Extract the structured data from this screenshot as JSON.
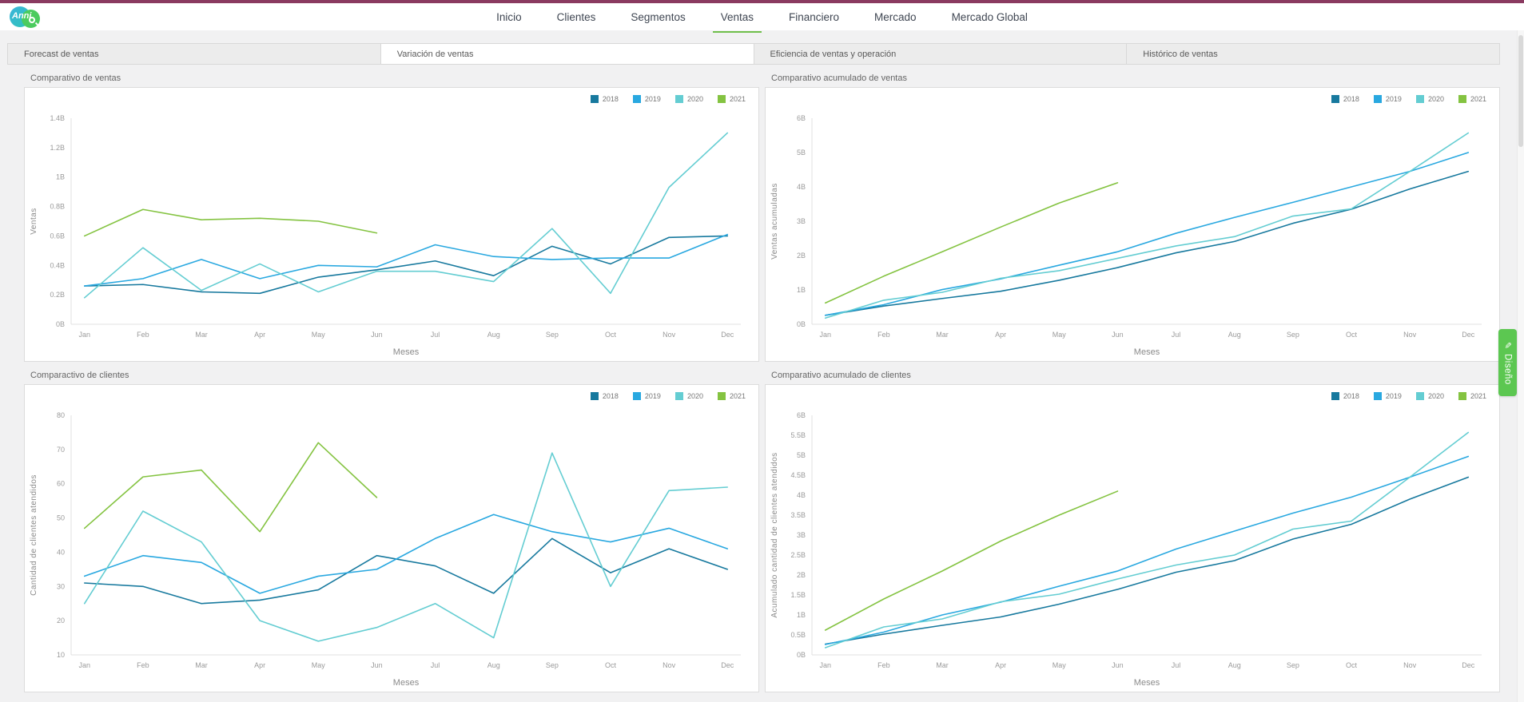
{
  "header": {
    "logo_text": "Anni",
    "topbar_color": "#8a3a60",
    "active_underline_color": "#6fbf4b",
    "nav_items": [
      {
        "label": "Inicio",
        "active": false
      },
      {
        "label": "Clientes",
        "active": false
      },
      {
        "label": "Segmentos",
        "active": false
      },
      {
        "label": "Ventas",
        "active": true
      },
      {
        "label": "Financiero",
        "active": false
      },
      {
        "label": "Mercado",
        "active": false
      },
      {
        "label": "Mercado Global",
        "active": false
      }
    ]
  },
  "subtabs": [
    {
      "label": "Forecast de ventas",
      "active": false
    },
    {
      "label": "Variación de ventas",
      "active": true
    },
    {
      "label": "Eficiencia de ventas y operación",
      "active": false
    },
    {
      "label": "Histórico de ventas",
      "active": false
    }
  ],
  "design_button": {
    "label": "Diseño",
    "color": "#5cc751"
  },
  "chart_data": [
    {
      "type": "line",
      "title": "Comparativo de ventas",
      "xlabel": "Meses",
      "ylabel": "Ventas",
      "ylim": [
        0,
        1.4
      ],
      "yticks": [
        0,
        0.2,
        0.4,
        0.6,
        0.8,
        1,
        1.2,
        1.4
      ],
      "ytick_suffix": "B",
      "grid": false,
      "legend_position": "top-right",
      "categories": [
        "Jan",
        "Feb",
        "Mar",
        "Apr",
        "May",
        "Jun",
        "Jul",
        "Aug",
        "Sep",
        "Oct",
        "Nov",
        "Dec"
      ],
      "series": [
        {
          "name": "2018",
          "color": "#17799e",
          "values": [
            0.26,
            0.27,
            0.22,
            0.21,
            0.32,
            0.37,
            0.43,
            0.33,
            0.53,
            0.41,
            0.59,
            0.6
          ]
        },
        {
          "name": "2019",
          "color": "#29a8e0",
          "values": [
            0.26,
            0.31,
            0.44,
            0.31,
            0.4,
            0.39,
            0.54,
            0.46,
            0.44,
            0.45,
            0.45,
            0.61
          ]
        },
        {
          "name": "2020",
          "color": "#64cdd2",
          "values": [
            0.18,
            0.52,
            0.23,
            0.41,
            0.22,
            0.36,
            0.36,
            0.29,
            0.65,
            0.21,
            0.93,
            1.3
          ]
        },
        {
          "name": "2021",
          "color": "#84c341",
          "values": [
            0.6,
            0.78,
            0.71,
            0.72,
            0.7,
            0.62,
            null,
            null,
            null,
            null,
            null,
            null
          ]
        }
      ]
    },
    {
      "type": "line",
      "title": "Comparativo acumulado de ventas",
      "xlabel": "Meses",
      "ylabel": "Ventas acumuladas",
      "ylim": [
        0,
        6
      ],
      "yticks": [
        0,
        1,
        2,
        3,
        4,
        5,
        6
      ],
      "ytick_suffix": "B",
      "grid": false,
      "legend_position": "top-right",
      "categories": [
        "Jan",
        "Feb",
        "Mar",
        "Apr",
        "May",
        "Jun",
        "Jul",
        "Aug",
        "Sep",
        "Oct",
        "Nov",
        "Dec"
      ],
      "series": [
        {
          "name": "2018",
          "color": "#17799e",
          "values": [
            0.26,
            0.53,
            0.75,
            0.96,
            1.28,
            1.65,
            2.08,
            2.41,
            2.94,
            3.35,
            3.94,
            4.45
          ]
        },
        {
          "name": "2019",
          "color": "#29a8e0",
          "values": [
            0.26,
            0.57,
            1.01,
            1.32,
            1.72,
            2.11,
            2.65,
            3.11,
            3.55,
            4.0,
            4.45,
            5.0
          ]
        },
        {
          "name": "2020",
          "color": "#64cdd2",
          "values": [
            0.18,
            0.7,
            0.93,
            1.34,
            1.56,
            1.92,
            2.28,
            2.55,
            3.15,
            3.36,
            4.45,
            5.57
          ]
        },
        {
          "name": "2021",
          "color": "#84c341",
          "values": [
            0.62,
            1.4,
            2.11,
            2.83,
            3.53,
            4.12,
            null,
            null,
            null,
            null,
            null,
            null
          ]
        }
      ]
    },
    {
      "type": "line",
      "title": "Comparactivo de clientes",
      "xlabel": "Meses",
      "ylabel": "Cantidad de clientes atendidos",
      "ylim": [
        10,
        80
      ],
      "yticks": [
        10,
        20,
        30,
        40,
        50,
        60,
        70,
        80
      ],
      "ytick_suffix": "",
      "grid": false,
      "legend_position": "top-right",
      "categories": [
        "Jan",
        "Feb",
        "Mar",
        "Apr",
        "May",
        "Jun",
        "Jul",
        "Aug",
        "Sep",
        "Oct",
        "Nov",
        "Dec"
      ],
      "series": [
        {
          "name": "2018",
          "color": "#17799e",
          "values": [
            31,
            30,
            25,
            26,
            29,
            39,
            36,
            28,
            44,
            34,
            41,
            35
          ]
        },
        {
          "name": "2019",
          "color": "#29a8e0",
          "values": [
            33,
            39,
            37,
            28,
            33,
            35,
            44,
            51,
            46,
            43,
            47,
            41
          ]
        },
        {
          "name": "2020",
          "color": "#64cdd2",
          "values": [
            25,
            52,
            43,
            20,
            14,
            18,
            25,
            15,
            69,
            30,
            58,
            59
          ]
        },
        {
          "name": "2021",
          "color": "#84c341",
          "values": [
            47,
            62,
            64,
            46,
            72,
            56,
            null,
            null,
            null,
            null,
            null,
            null
          ]
        }
      ]
    },
    {
      "type": "line",
      "title": "Comparativo acumulado de clientes",
      "xlabel": "Meses",
      "ylabel": "Acumulado cantidad de clientes atendidos",
      "ylim": [
        0,
        6
      ],
      "yticks": [
        0,
        0.5,
        1,
        1.5,
        2,
        2.5,
        3,
        3.5,
        4,
        4.5,
        5,
        5.5,
        6
      ],
      "ytick_suffix": "B",
      "grid": false,
      "legend_position": "top-right",
      "categories": [
        "Jan",
        "Feb",
        "Mar",
        "Apr",
        "May",
        "Jun",
        "Jul",
        "Aug",
        "Sep",
        "Oct",
        "Nov",
        "Dec"
      ],
      "series": [
        {
          "name": "2018",
          "color": "#17799e",
          "values": [
            0.27,
            0.52,
            0.74,
            0.95,
            1.27,
            1.64,
            2.07,
            2.36,
            2.9,
            3.27,
            3.9,
            4.45
          ]
        },
        {
          "name": "2019",
          "color": "#29a8e0",
          "values": [
            0.26,
            0.57,
            1.0,
            1.32,
            1.72,
            2.1,
            2.65,
            3.1,
            3.55,
            3.95,
            4.45,
            4.97
          ]
        },
        {
          "name": "2020",
          "color": "#64cdd2",
          "values": [
            0.18,
            0.7,
            0.9,
            1.33,
            1.52,
            1.9,
            2.25,
            2.5,
            3.15,
            3.35,
            4.45,
            5.57
          ]
        },
        {
          "name": "2021",
          "color": "#84c341",
          "values": [
            0.62,
            1.4,
            2.1,
            2.85,
            3.5,
            4.1,
            null,
            null,
            null,
            null,
            null,
            null
          ]
        }
      ]
    }
  ]
}
